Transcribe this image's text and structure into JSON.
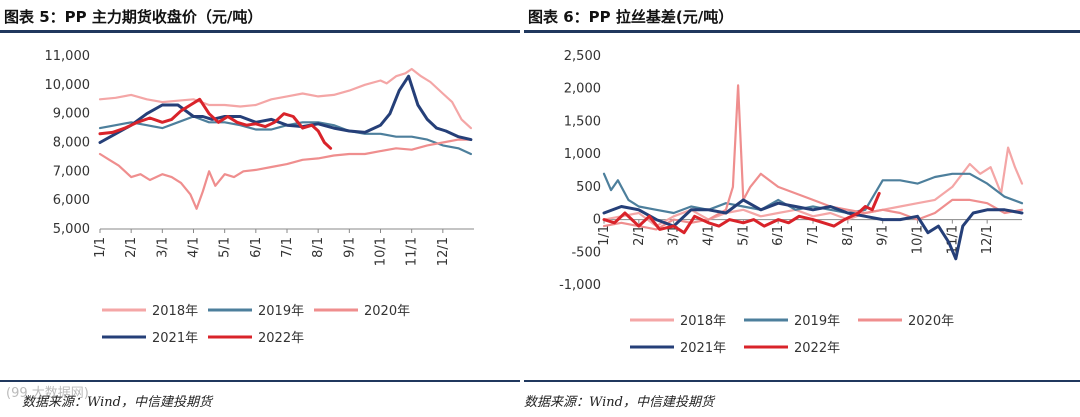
{
  "watermark": "(99 大数据网)",
  "colors": {
    "s2018": "#f4a6a6",
    "s2019": "#4d7f9c",
    "s2020": "#ef8e8e",
    "s2021": "#253f78",
    "s2022": "#d9232a",
    "rule": "#20385e",
    "axis": "#888888"
  },
  "chart_data": [
    {
      "type": "line",
      "title": "图表 5：PP 主力期货收盘价（元/吨）",
      "source": "数据来源：Wind，中信建投期货",
      "xlabel": "",
      "ylabel": "",
      "ylim": [
        5000,
        11000
      ],
      "yticks": [
        5000,
        6000,
        7000,
        8000,
        9000,
        10000,
        11000
      ],
      "ytick_labels": [
        "5,000",
        "6,000",
        "7,000",
        "8,000",
        "9,000",
        "10,000",
        "11,000"
      ],
      "x_tick_labels": [
        "1/1",
        "2/1",
        "3/1",
        "4/1",
        "5/1",
        "6/1",
        "7/1",
        "8/1",
        "9/1",
        "10/1",
        "11/1",
        "12/1"
      ],
      "legend": [
        "2018年",
        "2019年",
        "2020年",
        "2021年",
        "2022年"
      ],
      "series": [
        {
          "name": "2018年",
          "colorKey": "s2018",
          "x": [
            0,
            0.5,
            1,
            1.5,
            2,
            2.5,
            3,
            3.5,
            4,
            4.5,
            5,
            5.5,
            6,
            6.5,
            7,
            7.5,
            8,
            8.5,
            9,
            9.2,
            9.5,
            9.8,
            10,
            10.3,
            10.6,
            11,
            11.3,
            11.6,
            11.9
          ],
          "values": [
            9500,
            9550,
            9650,
            9500,
            9400,
            9450,
            9500,
            9300,
            9300,
            9250,
            9300,
            9500,
            9600,
            9700,
            9600,
            9650,
            9800,
            10000,
            10150,
            10050,
            10300,
            10400,
            10550,
            10300,
            10100,
            9700,
            9400,
            8800,
            8500
          ]
        },
        {
          "name": "2019年",
          "colorKey": "s2019",
          "x": [
            0,
            0.5,
            1,
            1.5,
            2,
            2.5,
            3,
            3.5,
            4,
            4.5,
            5,
            5.5,
            6,
            6.5,
            7,
            7.5,
            8,
            8.5,
            9,
            9.5,
            10,
            10.5,
            11,
            11.5,
            11.9
          ],
          "values": [
            8500,
            8600,
            8700,
            8600,
            8500,
            8700,
            8900,
            8700,
            8700,
            8600,
            8450,
            8450,
            8600,
            8700,
            8700,
            8600,
            8400,
            8300,
            8300,
            8200,
            8200,
            8100,
            7900,
            7800,
            7600
          ]
        },
        {
          "name": "2020年",
          "colorKey": "s2020",
          "x": [
            0,
            0.3,
            0.6,
            1,
            1.3,
            1.6,
            2,
            2.3,
            2.6,
            2.9,
            3.1,
            3.3,
            3.5,
            3.7,
            4,
            4.3,
            4.6,
            5,
            5.5,
            6,
            6.5,
            7,
            7.5,
            8,
            8.5,
            9,
            9.5,
            10,
            10.5,
            11,
            11.5,
            11.9
          ],
          "values": [
            7600,
            7400,
            7200,
            6800,
            6900,
            6700,
            6900,
            6800,
            6600,
            6200,
            5700,
            6300,
            7000,
            6500,
            6900,
            6800,
            7000,
            7050,
            7150,
            7250,
            7400,
            7450,
            7550,
            7600,
            7600,
            7700,
            7800,
            7750,
            7900,
            8000,
            8100,
            8100
          ]
        },
        {
          "name": "2021年",
          "colorKey": "s2021",
          "x": [
            0,
            0.5,
            1,
            1.5,
            2,
            2.5,
            3,
            3.3,
            3.6,
            4,
            4.5,
            5,
            5.5,
            6,
            6.5,
            7,
            7.5,
            8,
            8.5,
            9,
            9.3,
            9.6,
            9.9,
            10.2,
            10.5,
            10.8,
            11.1,
            11.5,
            11.9
          ],
          "values": [
            8000,
            8300,
            8600,
            9000,
            9300,
            9300,
            8900,
            8900,
            8800,
            8900,
            8900,
            8700,
            8800,
            8600,
            8550,
            8650,
            8500,
            8400,
            8350,
            8600,
            9000,
            9800,
            10300,
            9300,
            8800,
            8500,
            8400,
            8200,
            8100
          ]
        },
        {
          "name": "2022年",
          "colorKey": "s2022",
          "x": [
            0,
            0.4,
            0.8,
            1.2,
            1.6,
            2,
            2.3,
            2.6,
            2.9,
            3.2,
            3.5,
            3.8,
            4.1,
            4.4,
            4.7,
            5,
            5.3,
            5.6,
            5.9,
            6.2,
            6.5,
            6.8,
            7,
            7.2,
            7.4
          ],
          "values": [
            8300,
            8350,
            8500,
            8700,
            8850,
            8700,
            8800,
            9100,
            9300,
            9500,
            9000,
            8700,
            8900,
            8700,
            8600,
            8650,
            8550,
            8700,
            9000,
            8900,
            8500,
            8600,
            8400,
            8000,
            7800
          ]
        }
      ]
    },
    {
      "type": "line",
      "title": "图表 6：PP 拉丝基差(元/吨）",
      "source": "数据来源：Wind，中信建投期货",
      "xlabel": "",
      "ylabel": "",
      "ylim": [
        -1000,
        2500
      ],
      "yticks": [
        -1000,
        -500,
        0,
        500,
        1000,
        1500,
        2000,
        2500
      ],
      "ytick_labels": [
        "-1,000",
        "-500",
        "0",
        "500",
        "1,000",
        "1,500",
        "2,000",
        "2,500"
      ],
      "x_tick_labels": [
        "1/1",
        "2/1",
        "3/1",
        "4/1",
        "5/1",
        "6/1",
        "7/1",
        "8/1",
        "9/1",
        "10/1",
        "11/1",
        "12/1"
      ],
      "legend": [
        "2018年",
        "2019年",
        "2020年",
        "2021年",
        "2022年"
      ],
      "series": [
        {
          "name": "2018年",
          "colorKey": "s2018",
          "x": [
            0,
            0.5,
            1,
            1.5,
            2,
            2.5,
            3,
            3.5,
            4,
            4.5,
            5,
            5.5,
            6,
            6.5,
            7,
            7.5,
            8,
            8.5,
            9,
            9.5,
            10,
            10.5,
            10.8,
            11.1,
            11.4,
            11.6,
            11.8,
            12
          ],
          "values": [
            0,
            50,
            100,
            -100,
            50,
            150,
            0,
            100,
            150,
            50,
            100,
            150,
            50,
            100,
            0,
            100,
            150,
            200,
            250,
            300,
            500,
            850,
            700,
            800,
            400,
            1100,
            800,
            550
          ]
        },
        {
          "name": "2019年",
          "colorKey": "s2019",
          "x": [
            0,
            0.2,
            0.4,
            0.7,
            1,
            1.5,
            2,
            2.5,
            3,
            3.5,
            4,
            4.5,
            5,
            5.5,
            6,
            6.5,
            7,
            7.5,
            8,
            8.5,
            9,
            9.5,
            10,
            10.5,
            11,
            11.5,
            12
          ],
          "values": [
            700,
            450,
            600,
            300,
            200,
            150,
            100,
            200,
            150,
            250,
            200,
            150,
            300,
            150,
            200,
            150,
            100,
            150,
            600,
            600,
            550,
            650,
            700,
            700,
            550,
            350,
            250
          ]
        },
        {
          "name": "2020年",
          "colorKey": "s2020",
          "x": [
            0,
            0.5,
            1,
            1.5,
            2,
            2.5,
            3,
            3.5,
            3.7,
            3.85,
            4,
            4.2,
            4.5,
            5,
            5.5,
            6,
            6.5,
            7,
            7.5,
            8,
            8.5,
            9,
            9.5,
            10,
            10.5,
            11,
            11.5,
            12
          ],
          "values": [
            -100,
            -50,
            -100,
            -150,
            0,
            -50,
            0,
            150,
            500,
            2050,
            300,
            500,
            700,
            500,
            400,
            300,
            200,
            150,
            100,
            150,
            100,
            0,
            100,
            300,
            300,
            250,
            100,
            150
          ]
        },
        {
          "name": "2021年",
          "colorKey": "s2021",
          "x": [
            0,
            0.5,
            1,
            1.5,
            2,
            2.5,
            3,
            3.5,
            4,
            4.5,
            5,
            5.5,
            6,
            6.5,
            7,
            7.5,
            8,
            8.5,
            9,
            9.3,
            9.6,
            9.9,
            10.1,
            10.3,
            10.6,
            11,
            11.5,
            12
          ],
          "values": [
            100,
            200,
            150,
            0,
            -100,
            150,
            150,
            100,
            300,
            150,
            250,
            200,
            150,
            200,
            100,
            50,
            0,
            0,
            50,
            -200,
            -100,
            -350,
            -600,
            -100,
            100,
            150,
            150,
            100
          ]
        },
        {
          "name": "2022年",
          "colorKey": "s2022",
          "x": [
            0,
            0.3,
            0.6,
            1,
            1.3,
            1.6,
            2,
            2.3,
            2.6,
            3,
            3.3,
            3.6,
            4,
            4.3,
            4.6,
            5,
            5.3,
            5.6,
            6,
            6.3,
            6.6,
            6.9,
            7.1,
            7.3,
            7.5,
            7.7,
            7.9
          ],
          "values": [
            0,
            -50,
            100,
            -100,
            50,
            -150,
            -100,
            -200,
            50,
            -50,
            -100,
            0,
            -50,
            0,
            -100,
            0,
            -50,
            50,
            0,
            -50,
            -100,
            0,
            50,
            100,
            200,
            150,
            400
          ]
        }
      ]
    }
  ]
}
